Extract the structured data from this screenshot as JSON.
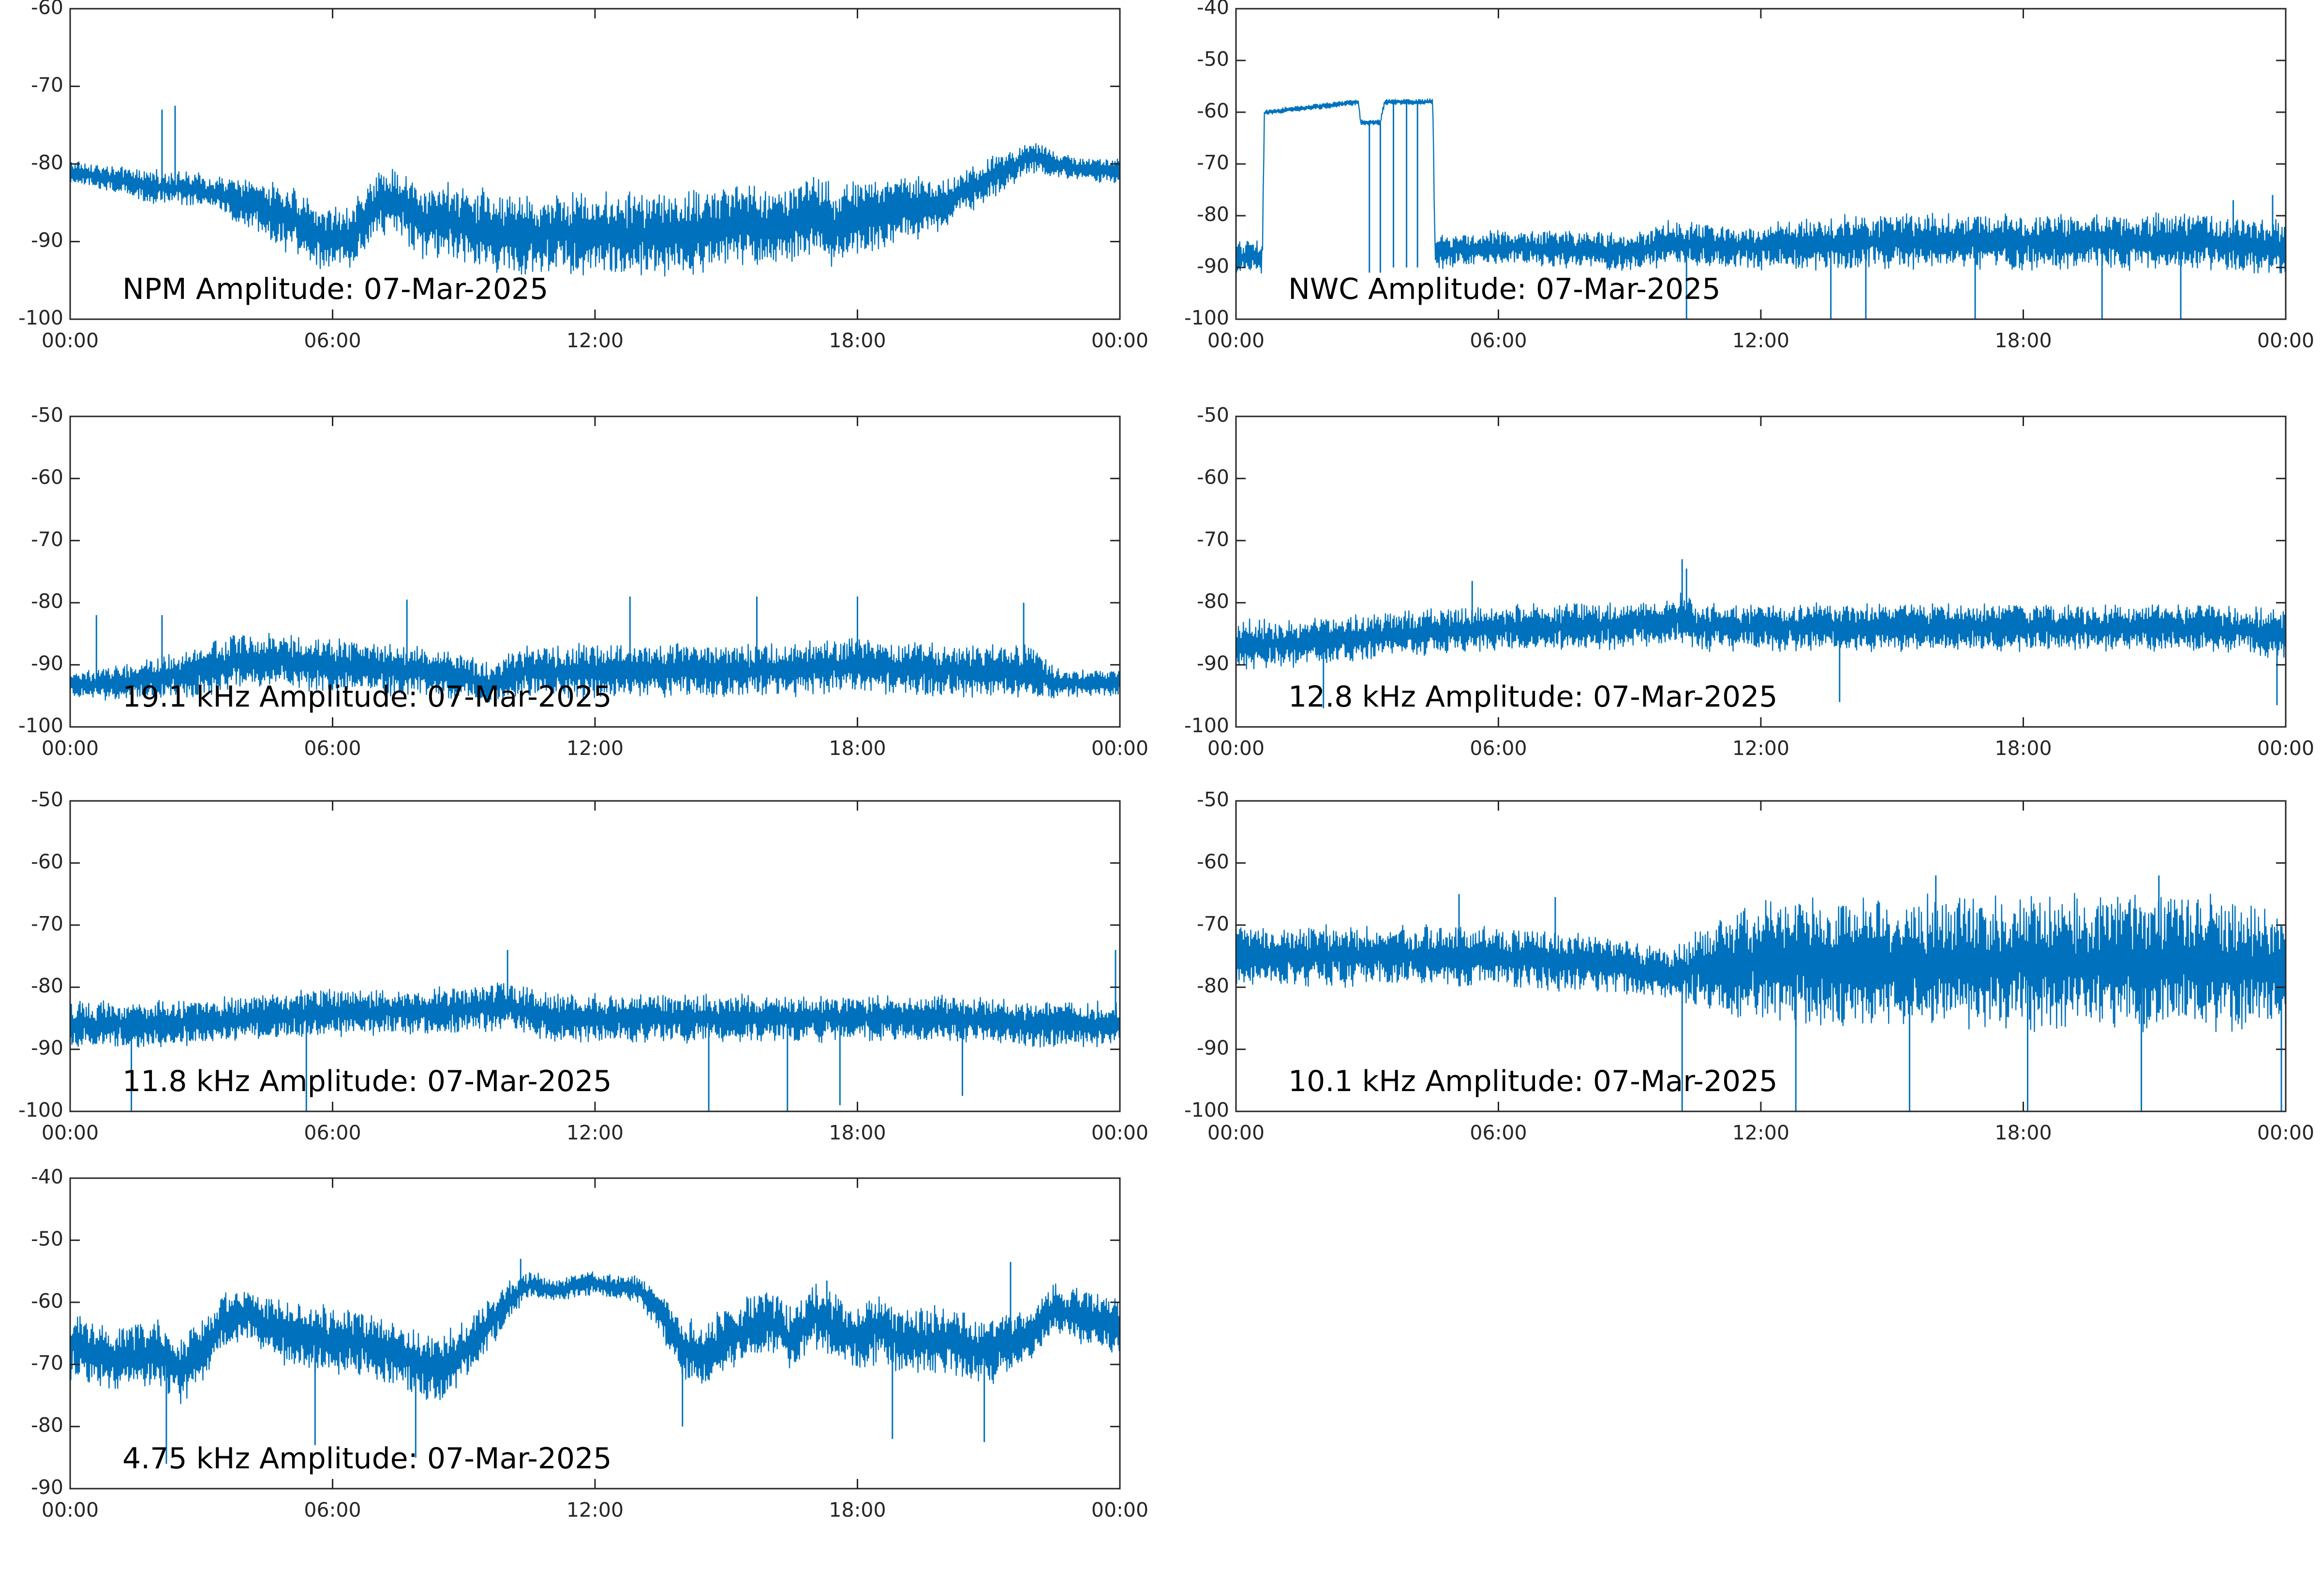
{
  "figure": {
    "line_color": "#0072BD"
  },
  "chart_data": [
    {
      "type": "line",
      "annotation": "NPM Amplitude: 07-Mar-2025",
      "x_tick_labels": [
        "00:00",
        "06:00",
        "12:00",
        "18:00",
        "00:00"
      ],
      "xlim_hours": [
        0,
        24
      ],
      "ylim": [
        -100,
        -60
      ],
      "y_ticks": [
        -100,
        -90,
        -80,
        -70,
        -60
      ],
      "series": [
        {
          "x_hours": [
            0,
            1,
            2,
            2.4,
            3,
            4,
            5,
            6,
            6.5,
            7,
            7.5,
            8,
            9,
            10,
            11,
            12,
            13,
            14,
            15,
            16,
            16.5,
            17,
            17.5,
            18,
            19,
            20,
            21,
            22,
            22.5,
            23,
            24
          ],
          "center": [
            -81,
            -82,
            -83,
            -83,
            -83.5,
            -85,
            -87,
            -90,
            -89,
            -85,
            -85,
            -87,
            -88,
            -89,
            -89,
            -89,
            -89,
            -89,
            -88,
            -88,
            -88,
            -86,
            -88,
            -87,
            -86,
            -85,
            -82,
            -79,
            -80,
            -80.5,
            -81
          ],
          "spread": [
            1.5,
            1.5,
            2,
            2,
            2,
            3,
            4,
            4,
            4,
            4,
            4,
            4.5,
            5,
            5,
            5,
            5,
            5,
            5,
            5,
            5,
            5,
            5,
            5,
            5,
            4,
            3,
            2.5,
            2,
            1.5,
            1.5,
            1.5
          ],
          "spikes": [
            {
              "x_hours": 2.1,
              "y": -73
            },
            {
              "x_hours": 2.4,
              "y": -72.5
            }
          ]
        }
      ]
    },
    {
      "type": "line",
      "annotation": "NWC Amplitude: 07-Mar-2025",
      "x_tick_labels": [
        "00:00",
        "06:00",
        "12:00",
        "18:00",
        "00:00"
      ],
      "xlim_hours": [
        0,
        24
      ],
      "ylim": [
        -100,
        -40
      ],
      "y_ticks": [
        -100,
        -90,
        -80,
        -70,
        -60,
        -50,
        -40
      ],
      "series": [
        {
          "x_hours": [
            0,
            0.6,
            0.65,
            0.7,
            2.8,
            2.85,
            3.0,
            3.1,
            3.3,
            3.4,
            3.5,
            3.8,
            4.3,
            4.5,
            4.55,
            6,
            9,
            10,
            11,
            12,
            14,
            16,
            18,
            20,
            22,
            24
          ],
          "center": [
            -88,
            -88,
            -60,
            -60,
            -58,
            -62,
            -62,
            -62,
            -62,
            -58,
            -58,
            -58,
            -58,
            -58,
            -87,
            -86,
            -87,
            -85,
            -86,
            -86,
            -85,
            -85,
            -85,
            -85,
            -85,
            -86
          ],
          "spread": [
            3,
            3,
            0.3,
            0.5,
            0.5,
            0.5,
            0.5,
            0.5,
            0.5,
            0.5,
            0.5,
            0.5,
            0.5,
            0.5,
            3,
            3,
            3.5,
            4,
            4,
            4,
            5,
            5,
            5,
            5,
            5,
            5
          ],
          "spikes": [
            {
              "x_hours": 3.05,
              "y": -91
            },
            {
              "x_hours": 3.3,
              "y": -91
            },
            {
              "x_hours": 3.6,
              "y": -90
            },
            {
              "x_hours": 3.9,
              "y": -90
            },
            {
              "x_hours": 4.15,
              "y": -90
            },
            {
              "x_hours": 10.3,
              "y": -100
            },
            {
              "x_hours": 13.6,
              "y": -100
            },
            {
              "x_hours": 14.4,
              "y": -100
            },
            {
              "x_hours": 16.9,
              "y": -100
            },
            {
              "x_hours": 19.8,
              "y": -100
            },
            {
              "x_hours": 21.6,
              "y": -100
            },
            {
              "x_hours": 22.8,
              "y": -77
            },
            {
              "x_hours": 23.7,
              "y": -76
            }
          ]
        }
      ]
    },
    {
      "type": "line",
      "annotation": "19.1 kHz Amplitude: 07-Mar-2025",
      "x_tick_labels": [
        "00:00",
        "06:00",
        "12:00",
        "18:00",
        "00:00"
      ],
      "xlim_hours": [
        0,
        24
      ],
      "ylim": [
        -100,
        -50
      ],
      "y_ticks": [
        -100,
        -90,
        -80,
        -70,
        -60,
        -50
      ],
      "series": [
        {
          "x_hours": [
            0,
            1,
            2,
            3,
            4,
            6,
            8,
            9,
            9.5,
            10,
            10.5,
            12,
            14,
            16,
            18,
            20,
            22,
            22.5,
            23,
            24
          ],
          "center": [
            -93,
            -93,
            -92,
            -91,
            -89,
            -90,
            -91,
            -92,
            -93,
            -92,
            -91,
            -91,
            -91,
            -91,
            -90,
            -91,
            -91,
            -93,
            -93,
            -93
          ],
          "spread": [
            2,
            2.5,
            3,
            4,
            4,
            4,
            4,
            3.5,
            3,
            4,
            4,
            4,
            4,
            4,
            4,
            4,
            4,
            2.5,
            2,
            2
          ],
          "spikes": [
            {
              "x_hours": 0.6,
              "y": -82
            },
            {
              "x_hours": 2.1,
              "y": -82
            },
            {
              "x_hours": 7.7,
              "y": -79.5
            },
            {
              "x_hours": 12.8,
              "y": -79
            },
            {
              "x_hours": 15.7,
              "y": -79
            },
            {
              "x_hours": 18.0,
              "y": -79
            },
            {
              "x_hours": 21.8,
              "y": -80
            },
            {
              "x_hours": 24.0,
              "y": -84
            }
          ]
        }
      ]
    },
    {
      "type": "line",
      "annotation": "12.8 kHz Amplitude: 07-Mar-2025",
      "x_tick_labels": [
        "00:00",
        "06:00",
        "12:00",
        "18:00",
        "00:00"
      ],
      "xlim_hours": [
        0,
        24
      ],
      "ylim": [
        -100,
        -50
      ],
      "y_ticks": [
        -100,
        -90,
        -80,
        -70,
        -60,
        -50
      ],
      "series": [
        {
          "x_hours": [
            0,
            2,
            4,
            6,
            8,
            10,
            10.2,
            10.5,
            12,
            14,
            16,
            18,
            20,
            22,
            24
          ],
          "center": [
            -87,
            -86,
            -85,
            -84,
            -84,
            -83,
            -82,
            -84,
            -84,
            -84,
            -84,
            -84,
            -84,
            -84,
            -85
          ],
          "spread": [
            4,
            3.5,
            3.5,
            3.5,
            3.5,
            3.5,
            4,
            3.5,
            3.5,
            3.5,
            3.5,
            3.5,
            3.5,
            3.5,
            3.5
          ],
          "spikes": [
            {
              "x_hours": 10.2,
              "y": -73
            },
            {
              "x_hours": 10.3,
              "y": -74.5
            },
            {
              "x_hours": 5.4,
              "y": -76.5
            },
            {
              "x_hours": 2.0,
              "y": -97
            },
            {
              "x_hours": 13.8,
              "y": -96
            },
            {
              "x_hours": 23.8,
              "y": -96.5
            }
          ]
        }
      ]
    },
    {
      "type": "line",
      "annotation": "11.8 kHz Amplitude: 07-Mar-2025",
      "x_tick_labels": [
        "00:00",
        "06:00",
        "12:00",
        "18:00",
        "00:00"
      ],
      "xlim_hours": [
        0,
        24
      ],
      "ylim": [
        -100,
        -50
      ],
      "y_ticks": [
        -100,
        -90,
        -80,
        -70,
        -60,
        -50
      ],
      "series": [
        {
          "x_hours": [
            0,
            2,
            4,
            6,
            8,
            10,
            11,
            12,
            14,
            16,
            18,
            20,
            22,
            24
          ],
          "center": [
            -86,
            -86,
            -85,
            -84,
            -84,
            -83,
            -85,
            -85,
            -85,
            -85,
            -85,
            -85,
            -86,
            -86
          ],
          "spread": [
            3.5,
            3.5,
            3.5,
            3.5,
            3.5,
            3.5,
            3.5,
            3.5,
            3.5,
            3.5,
            3.5,
            3.5,
            3.5,
            3.5
          ],
          "spikes": [
            {
              "x_hours": 10.0,
              "y": -74
            },
            {
              "x_hours": 23.9,
              "y": -74
            },
            {
              "x_hours": 1.4,
              "y": -100
            },
            {
              "x_hours": 5.4,
              "y": -100
            },
            {
              "x_hours": 14.6,
              "y": -100
            },
            {
              "x_hours": 16.4,
              "y": -100
            },
            {
              "x_hours": 17.6,
              "y": -99
            },
            {
              "x_hours": 20.4,
              "y": -97.5
            }
          ]
        }
      ]
    },
    {
      "type": "line",
      "annotation": "10.1 kHz Amplitude: 07-Mar-2025",
      "x_tick_labels": [
        "00:00",
        "06:00",
        "12:00",
        "18:00",
        "00:00"
      ],
      "xlim_hours": [
        0,
        24
      ],
      "ylim": [
        -100,
        -50
      ],
      "y_ticks": [
        -100,
        -90,
        -80,
        -70,
        -60,
        -50
      ],
      "series": [
        {
          "x_hours": [
            0,
            2,
            4,
            6,
            8,
            9,
            10,
            10.5,
            11,
            12,
            14,
            16,
            18,
            20,
            22,
            24
          ],
          "center": [
            -75,
            -75,
            -75,
            -75,
            -76,
            -77,
            -78,
            -77,
            -77,
            -76,
            -76,
            -76,
            -76,
            -76,
            -76,
            -77
          ],
          "spread": [
            4.5,
            4.5,
            4.5,
            4.5,
            4.5,
            4,
            4,
            6,
            7,
            9,
            10,
            10,
            10,
            10,
            10,
            9
          ],
          "spikes": [
            {
              "x_hours": 5.1,
              "y": -65
            },
            {
              "x_hours": 7.3,
              "y": -65.5
            },
            {
              "x_hours": 16.0,
              "y": -62
            },
            {
              "x_hours": 21.1,
              "y": -62
            },
            {
              "x_hours": 10.2,
              "y": -100
            },
            {
              "x_hours": 12.8,
              "y": -100
            },
            {
              "x_hours": 15.4,
              "y": -100
            },
            {
              "x_hours": 18.1,
              "y": -100
            },
            {
              "x_hours": 20.7,
              "y": -100
            },
            {
              "x_hours": 23.9,
              "y": -100
            }
          ]
        }
      ]
    },
    {
      "type": "line",
      "annotation": "4.75 kHz Amplitude: 07-Mar-2025",
      "x_tick_labels": [
        "00:00",
        "06:00",
        "12:00",
        "18:00",
        "00:00"
      ],
      "xlim_hours": [
        0,
        24
      ],
      "ylim": [
        -90,
        -40
      ],
      "y_ticks": [
        -90,
        -80,
        -70,
        -60,
        -50,
        -40
      ],
      "series": [
        {
          "x_hours": [
            0,
            1,
            2,
            2.5,
            3,
            3.5,
            4,
            5,
            6,
            7,
            7.5,
            8,
            8.5,
            9,
            9.5,
            10,
            10.5,
            11,
            12,
            13,
            13.5,
            14,
            14.5,
            15,
            16,
            16.5,
            17,
            18,
            18.5,
            19,
            20,
            21,
            22,
            22.5,
            23,
            24
          ],
          "center": [
            -67,
            -69,
            -68,
            -71,
            -68,
            -63,
            -62,
            -65,
            -66,
            -67,
            -68,
            -70,
            -71,
            -68,
            -64,
            -60,
            -57,
            -58,
            -57,
            -58,
            -62,
            -67,
            -69,
            -66,
            -63,
            -66,
            -62,
            -66,
            -64,
            -66,
            -66,
            -68,
            -65,
            -61,
            -62,
            -64
          ],
          "spread": [
            5,
            5,
            5,
            5,
            5,
            4,
            3.5,
            5,
            5,
            5,
            5,
            5,
            5,
            5,
            4,
            3,
            2,
            1.8,
            1.8,
            2,
            3,
            5,
            5,
            5,
            5,
            5,
            5,
            5,
            5,
            5,
            5,
            5,
            4,
            3.5,
            4,
            4
          ],
          "spikes": [
            {
              "x_hours": 2.2,
              "y": -86
            },
            {
              "x_hours": 5.6,
              "y": -83
            },
            {
              "x_hours": 7.9,
              "y": -85
            },
            {
              "x_hours": 10.3,
              "y": -53
            },
            {
              "x_hours": 14.0,
              "y": -80
            },
            {
              "x_hours": 17.3,
              "y": -56.5
            },
            {
              "x_hours": 18.8,
              "y": -82
            },
            {
              "x_hours": 20.9,
              "y": -82.5
            },
            {
              "x_hours": 21.5,
              "y": -53.5
            },
            {
              "x_hours": 24.0,
              "y": -56
            }
          ]
        }
      ]
    }
  ]
}
